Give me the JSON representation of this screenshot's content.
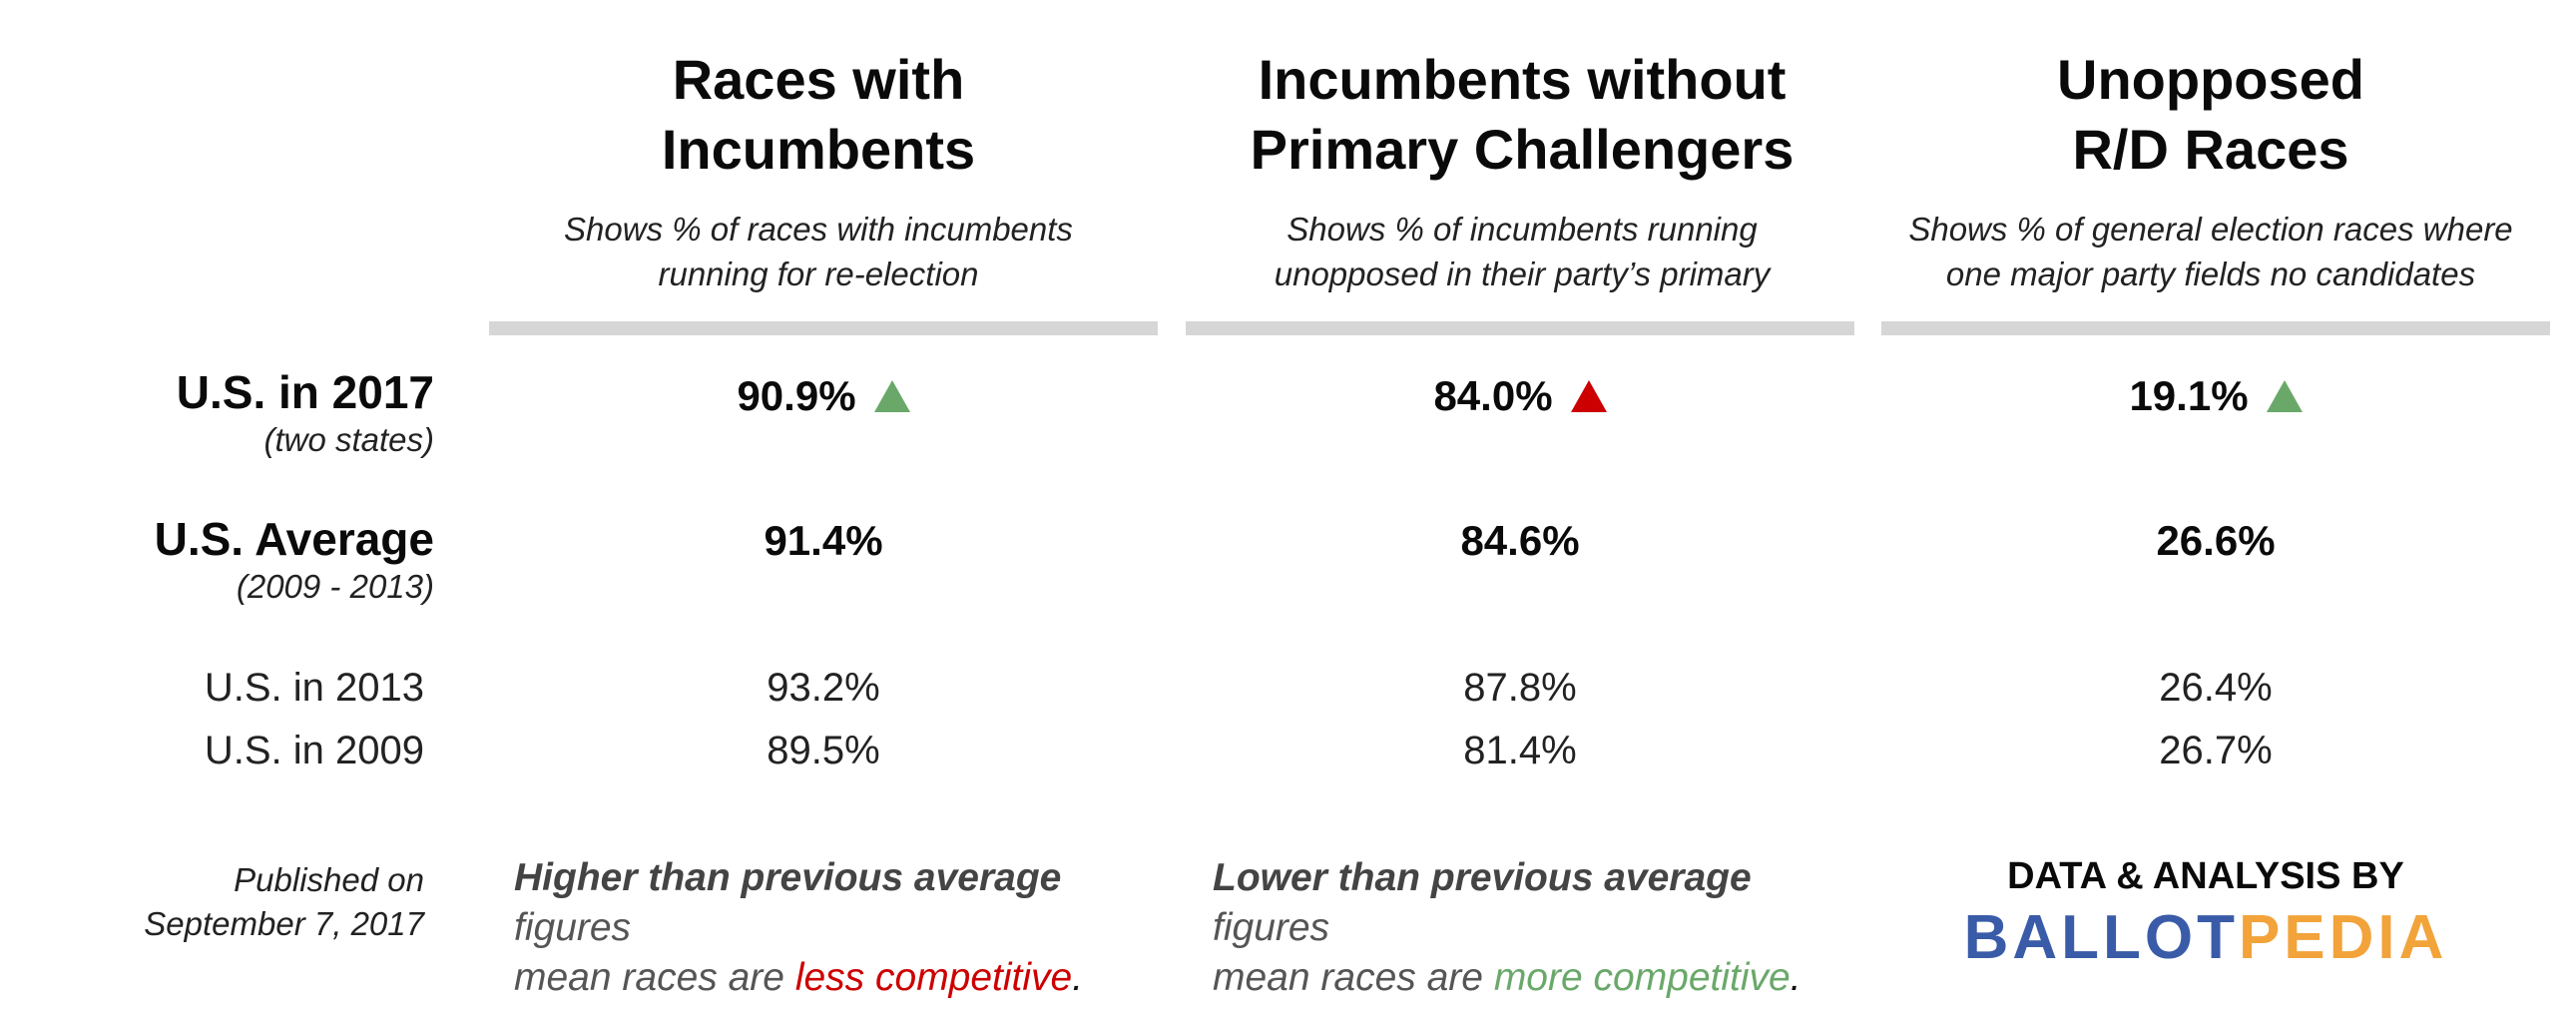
{
  "chart_data": {
    "type": "table",
    "columns": [
      {
        "title_line1": "Races with",
        "title_line2": "Incumbents",
        "subtitle_line1": "Shows % of races with incumbents",
        "subtitle_line2": "running for re-election"
      },
      {
        "title_line1": "Incumbents without",
        "title_line2": "Primary Challengers",
        "subtitle_line1": "Shows % of incumbents running",
        "subtitle_line2": "unopposed in their party’s primary"
      },
      {
        "title_line1": "Unopposed",
        "title_line2": "R/D Races",
        "subtitle_line1": "Shows % of general election races where",
        "subtitle_line2": "one major party fields no candidates"
      }
    ],
    "rows": [
      {
        "label": "U.S. in 2017",
        "sublabel": "(two states)",
        "values": [
          "90.9%",
          "84.0%",
          "19.1%"
        ],
        "numeric": [
          90.9,
          84.0,
          19.1
        ],
        "indicators": [
          "up-green",
          "up-red",
          "up-green"
        ]
      },
      {
        "label": "U.S. Average",
        "sublabel": "(2009 - 2013)",
        "values": [
          "91.4%",
          "84.6%",
          "26.6%"
        ],
        "numeric": [
          91.4,
          84.6,
          26.6
        ]
      },
      {
        "label": "U.S. in 2013",
        "values": [
          "93.2%",
          "87.8%",
          "26.4%"
        ],
        "numeric": [
          93.2,
          87.8,
          26.4
        ]
      },
      {
        "label": "U.S. in 2009",
        "values": [
          "89.5%",
          "81.4%",
          "26.7%"
        ],
        "numeric": [
          89.5,
          81.4,
          26.7
        ]
      }
    ]
  },
  "footer": {
    "published_line1": "Published on",
    "published_line2": "September 7, 2017",
    "note_left": {
      "bold": "Higher than previous average",
      "text1": " figures",
      "text2": "mean races are ",
      "highlight": "less competitive",
      "end": "."
    },
    "note_right": {
      "bold": "Lower than previous average",
      "text1": " figures",
      "text2": "mean races are ",
      "highlight": "more competitive",
      "end": "."
    },
    "brand_top": "DATA & ANALYSIS BY",
    "brand_part1": "BALLOT",
    "brand_part2": "PEDIA"
  },
  "colors": {
    "green": "#6aa86a",
    "red": "#cc0000",
    "rule": "#d6d6d6",
    "brand_blue": "#3a5ba8",
    "brand_orange": "#f2a33a"
  }
}
